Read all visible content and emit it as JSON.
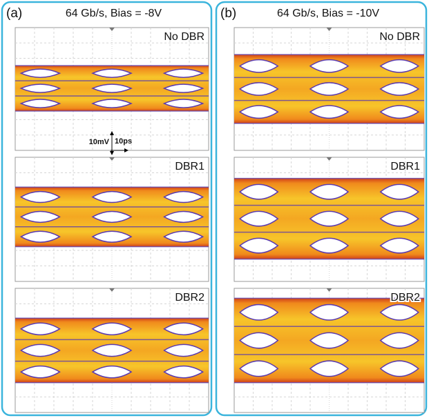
{
  "panels": [
    {
      "label": "(a)",
      "title": "64 Gb/s, Bias = -8V",
      "plots": [
        {
          "label": "No DBR"
        },
        {
          "label": "DBR1"
        },
        {
          "label": "DBR2"
        }
      ]
    },
    {
      "label": "(b)",
      "title": "64 Gb/s, Bias = -10V",
      "plots": [
        {
          "label": "No DBR"
        },
        {
          "label": "DBR1"
        },
        {
          "label": "DBR2"
        }
      ]
    }
  ],
  "scale": {
    "voltage": "10mV",
    "time": "10ps"
  }
}
